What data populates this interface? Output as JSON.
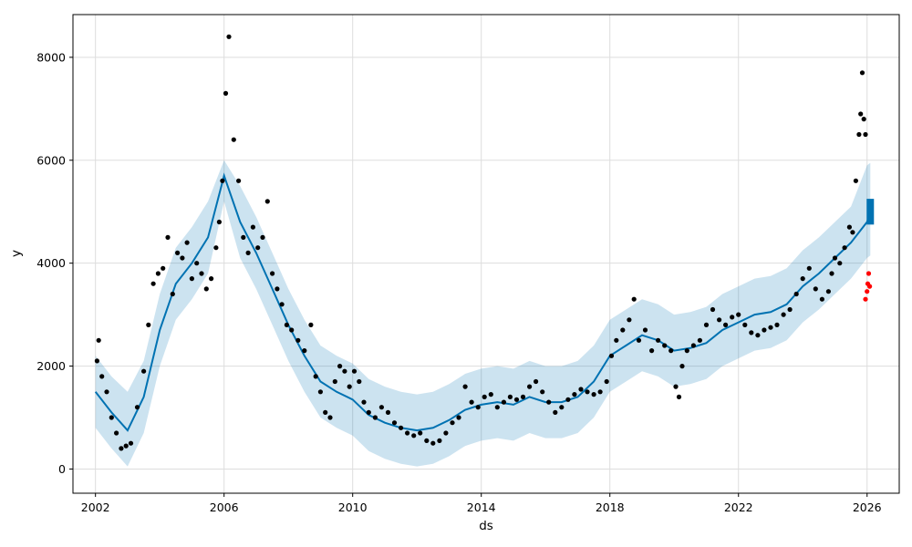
{
  "chart_data": {
    "type": "line",
    "title": "",
    "xlabel": "ds",
    "ylabel": "y",
    "xlim": [
      2001.3,
      2027.0
    ],
    "ylim": [
      -470,
      8830
    ],
    "grid": true,
    "legend": false,
    "x_ticks": [
      {
        "value": 2002,
        "label": "2002"
      },
      {
        "value": 2006,
        "label": "2006"
      },
      {
        "value": 2010,
        "label": "2010"
      },
      {
        "value": 2014,
        "label": "2014"
      },
      {
        "value": 2018,
        "label": "2018"
      },
      {
        "value": 2022,
        "label": "2022"
      },
      {
        "value": 2026,
        "label": "2026"
      }
    ],
    "y_ticks": [
      {
        "value": 0,
        "label": "0"
      },
      {
        "value": 2000,
        "label": "2000"
      },
      {
        "value": 4000,
        "label": "4000"
      },
      {
        "value": 6000,
        "label": "6000"
      },
      {
        "value": 8000,
        "label": "8000"
      }
    ],
    "colors": {
      "observed": "#000000",
      "forecast": "#0072B2",
      "interval": "#0072B2",
      "highlight": "#ff0000",
      "grid": "#dddddd",
      "axes": "#000000"
    },
    "series": [
      {
        "role": "observed",
        "marker": "dot",
        "x": [
          2002.05,
          2002.1,
          2002.2,
          2002.35,
          2002.5,
          2002.65,
          2002.8,
          2002.95,
          2003.1,
          2003.3,
          2003.5,
          2003.65,
          2003.8,
          2003.95,
          2004.1,
          2004.25,
          2004.4,
          2004.55,
          2004.7,
          2004.85,
          2005.0,
          2005.15,
          2005.3,
          2005.45,
          2005.6,
          2005.75,
          2005.85,
          2005.95,
          2006.05,
          2006.15,
          2006.3,
          2006.45,
          2006.6,
          2006.75,
          2006.9,
          2007.05,
          2007.2,
          2007.35,
          2007.5,
          2007.65,
          2007.8,
          2007.95,
          2008.1,
          2008.3,
          2008.5,
          2008.7,
          2008.85,
          2009.0,
          2009.15,
          2009.3,
          2009.45,
          2009.6,
          2009.75,
          2009.9,
          2010.05,
          2010.2,
          2010.35,
          2010.5,
          2010.7,
          2010.9,
          2011.1,
          2011.3,
          2011.5,
          2011.7,
          2011.9,
          2012.1,
          2012.3,
          2012.5,
          2012.7,
          2012.9,
          2013.1,
          2013.3,
          2013.5,
          2013.7,
          2013.9,
          2014.1,
          2014.3,
          2014.5,
          2014.7,
          2014.9,
          2015.1,
          2015.3,
          2015.5,
          2015.7,
          2015.9,
          2016.1,
          2016.3,
          2016.5,
          2016.7,
          2016.9,
          2017.1,
          2017.3,
          2017.5,
          2017.7,
          2017.9,
          2018.05,
          2018.2,
          2018.4,
          2018.6,
          2018.75,
          2018.9,
          2019.1,
          2019.3,
          2019.5,
          2019.7,
          2019.9,
          2020.05,
          2020.15,
          2020.25,
          2020.4,
          2020.6,
          2020.8,
          2021.0,
          2021.2,
          2021.4,
          2021.6,
          2021.8,
          2022.0,
          2022.2,
          2022.4,
          2022.6,
          2022.8,
          2023.0,
          2023.2,
          2023.4,
          2023.6,
          2023.8,
          2024.0,
          2024.2,
          2024.4,
          2024.6,
          2024.8,
          2024.9,
          2025.0,
          2025.15,
          2025.3,
          2025.45,
          2025.55,
          2025.65,
          2025.75,
          2025.8,
          2025.85,
          2025.9,
          2025.95
        ],
        "y": [
          2100,
          2500,
          1800,
          1500,
          1000,
          700,
          400,
          450,
          500,
          1200,
          1900,
          2800,
          3600,
          3800,
          3900,
          4500,
          3400,
          4200,
          4100,
          4400,
          3700,
          4000,
          3800,
          3500,
          3700,
          4300,
          4800,
          5600,
          7300,
          8400,
          6400,
          5600,
          4500,
          4200,
          4700,
          4300,
          4500,
          5200,
          3800,
          3500,
          3200,
          2800,
          2700,
          2500,
          2300,
          2800,
          1800,
          1500,
          1100,
          1000,
          1700,
          2000,
          1900,
          1600,
          1900,
          1700,
          1300,
          1100,
          1000,
          1200,
          1100,
          900,
          800,
          700,
          650,
          700,
          550,
          500,
          550,
          700,
          900,
          1000,
          1600,
          1300,
          1200,
          1400,
          1450,
          1200,
          1300,
          1400,
          1350,
          1400,
          1600,
          1700,
          1500,
          1300,
          1100,
          1200,
          1350,
          1450,
          1550,
          1500,
          1450,
          1500,
          1700,
          2200,
          2500,
          2700,
          2900,
          3300,
          2500,
          2700,
          2300,
          2500,
          2400,
          2300,
          1600,
          1400,
          2000,
          2300,
          2400,
          2500,
          2800,
          3100,
          2900,
          2800,
          2950,
          3000,
          2800,
          2650,
          2600,
          2700,
          2750,
          2800,
          3000,
          3100,
          3400,
          3700,
          3900,
          3500,
          3300,
          3450,
          3800,
          4100,
          4000,
          4300,
          4700,
          4600,
          5600,
          6500,
          6900,
          7700,
          6800,
          6500
        ]
      },
      {
        "role": "forecast",
        "marker": "line",
        "x": [
          2002.0,
          2002.5,
          2003.0,
          2003.5,
          2004.0,
          2004.5,
          2005.0,
          2005.5,
          2006.0,
          2006.5,
          2007.0,
          2007.5,
          2008.0,
          2008.5,
          2009.0,
          2009.5,
          2010.0,
          2010.5,
          2011.0,
          2011.5,
          2012.0,
          2012.5,
          2013.0,
          2013.5,
          2014.0,
          2014.5,
          2015.0,
          2015.5,
          2016.0,
          2016.5,
          2017.0,
          2017.5,
          2018.0,
          2018.5,
          2019.0,
          2019.5,
          2020.0,
          2020.5,
          2021.0,
          2021.5,
          2022.0,
          2022.5,
          2023.0,
          2023.5,
          2024.0,
          2024.5,
          2025.0,
          2025.5,
          2026.0,
          2026.1
        ],
        "y": [
          1500,
          1100,
          750,
          1400,
          2700,
          3600,
          4000,
          4500,
          5700,
          4800,
          4200,
          3500,
          2800,
          2200,
          1700,
          1500,
          1350,
          1050,
          900,
          800,
          750,
          800,
          950,
          1150,
          1250,
          1300,
          1250,
          1400,
          1300,
          1300,
          1400,
          1700,
          2200,
          2400,
          2600,
          2500,
          2300,
          2350,
          2450,
          2700,
          2850,
          3000,
          3050,
          3200,
          3550,
          3800,
          4100,
          4400,
          4800,
          5000
        ]
      },
      {
        "role": "interval_upper",
        "marker": "band",
        "x": [
          2002.0,
          2002.5,
          2003.0,
          2003.5,
          2004.0,
          2004.5,
          2005.0,
          2005.5,
          2006.0,
          2006.5,
          2007.0,
          2007.5,
          2008.0,
          2008.5,
          2009.0,
          2009.5,
          2010.0,
          2010.5,
          2011.0,
          2011.5,
          2012.0,
          2012.5,
          2013.0,
          2013.5,
          2014.0,
          2014.5,
          2015.0,
          2015.5,
          2016.0,
          2016.5,
          2017.0,
          2017.5,
          2018.0,
          2018.5,
          2019.0,
          2019.5,
          2020.0,
          2020.5,
          2021.0,
          2021.5,
          2022.0,
          2022.5,
          2023.0,
          2023.5,
          2024.0,
          2024.5,
          2025.0,
          2025.5,
          2026.0,
          2026.1
        ],
        "y": [
          2200,
          1800,
          1500,
          2100,
          3400,
          4300,
          4700,
          5200,
          6000,
          5500,
          4900,
          4200,
          3500,
          2900,
          2400,
          2200,
          2050,
          1750,
          1600,
          1500,
          1450,
          1500,
          1650,
          1850,
          1950,
          2000,
          1950,
          2100,
          2000,
          2000,
          2100,
          2400,
          2900,
          3100,
          3300,
          3200,
          3000,
          3050,
          3150,
          3400,
          3550,
          3700,
          3750,
          3900,
          4250,
          4500,
          4800,
          5100,
          5900,
          5950
        ]
      },
      {
        "role": "interval_lower",
        "marker": "band",
        "x": [
          2002.0,
          2002.5,
          2003.0,
          2003.5,
          2004.0,
          2004.5,
          2005.0,
          2005.5,
          2006.0,
          2006.5,
          2007.0,
          2007.5,
          2008.0,
          2008.5,
          2009.0,
          2009.5,
          2010.0,
          2010.5,
          2011.0,
          2011.5,
          2012.0,
          2012.5,
          2013.0,
          2013.5,
          2014.0,
          2014.5,
          2015.0,
          2015.5,
          2016.0,
          2016.5,
          2017.0,
          2017.5,
          2018.0,
          2018.5,
          2019.0,
          2019.5,
          2020.0,
          2020.5,
          2021.0,
          2021.5,
          2022.0,
          2022.5,
          2023.0,
          2023.5,
          2024.0,
          2024.5,
          2025.0,
          2025.5,
          2026.0,
          2026.1
        ],
        "y": [
          800,
          400,
          50,
          700,
          2000,
          2900,
          3300,
          3800,
          5200,
          4100,
          3500,
          2800,
          2100,
          1500,
          1000,
          800,
          650,
          350,
          200,
          100,
          50,
          100,
          250,
          450,
          550,
          600,
          550,
          700,
          600,
          600,
          700,
          1000,
          1500,
          1700,
          1900,
          1800,
          1600,
          1650,
          1750,
          2000,
          2150,
          2300,
          2350,
          2500,
          2850,
          3100,
          3400,
          3700,
          4100,
          4150
        ]
      },
      {
        "role": "highlight",
        "marker": "dot",
        "x": [
          2025.95,
          2026.0,
          2026.02,
          2026.05,
          2026.08
        ],
        "y": [
          3300,
          3450,
          3600,
          3800,
          3550
        ]
      }
    ]
  }
}
